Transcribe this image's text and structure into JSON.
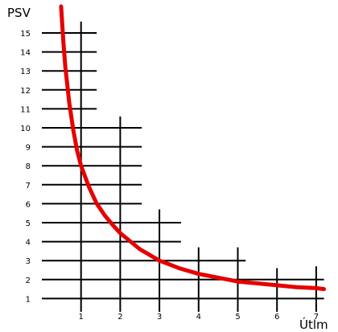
{
  "chart_data": {
    "type": "line",
    "title": "",
    "xlabel": "Útlm",
    "ylabel": "PSV",
    "x_ticks": [
      "1",
      "2",
      "3",
      "4",
      "5",
      "6",
      "7"
    ],
    "y_ticks": [
      "1",
      "2",
      "3",
      "4",
      "5",
      "6",
      "7",
      "8",
      "9",
      "10",
      "11",
      "12",
      "13",
      "14",
      "15"
    ],
    "xlim": [
      0,
      7.3
    ],
    "ylim": [
      0.5,
      16.5
    ],
    "grid": true,
    "legend": "none",
    "series": [
      {
        "color": "#e60000",
        "x": [
          0.49,
          0.55,
          0.6,
          0.7,
          0.8,
          0.9,
          1.0,
          1.2,
          1.4,
          1.6,
          1.8,
          2.0,
          2.5,
          3.0,
          3.5,
          4.0,
          4.5,
          5.0,
          5.5,
          6.0,
          6.5,
          7.0,
          7.2
        ],
        "y": [
          16.4,
          14.5,
          13.2,
          11.3,
          9.9,
          8.8,
          8.0,
          6.9,
          6.0,
          5.4,
          4.9,
          4.45,
          3.6,
          3.0,
          2.6,
          2.3,
          2.1,
          1.9,
          1.8,
          1.7,
          1.6,
          1.55,
          1.5
        ]
      }
    ]
  }
}
